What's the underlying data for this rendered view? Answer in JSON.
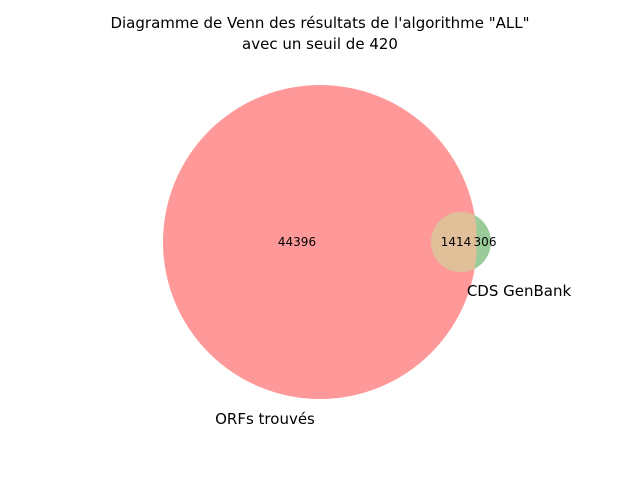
{
  "chart_data": {
    "type": "venn",
    "title_lines": [
      "Diagramme de Venn des résultats de l'algorithme \"ALL\"",
      "avec un seuil de 420"
    ],
    "sets": [
      {
        "id": "A",
        "label": "ORFs trouvés",
        "color": "#ff9999"
      },
      {
        "id": "B",
        "label": "CDS GenBank",
        "color": "#99cc99"
      }
    ],
    "regions": {
      "only_A": {
        "value": "44396"
      },
      "intersection": {
        "value": "1414"
      },
      "only_B": {
        "value": "306"
      }
    },
    "intersection_color": "#e0bf99"
  }
}
